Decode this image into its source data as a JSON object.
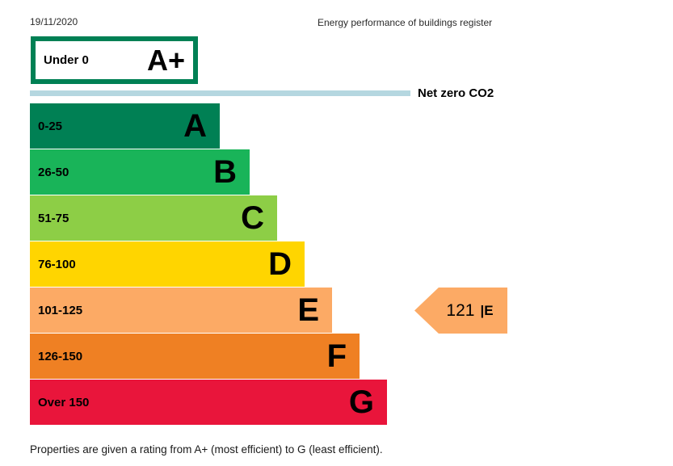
{
  "page": {
    "date": "19/11/2020",
    "header": "Energy performance of buildings register",
    "footnote": "Properties are given a rating from A+ (most efficient) to G (least efficient)."
  },
  "colors": {
    "aplus_border": "#008054",
    "net_zero_line": "#b5d7e0",
    "arrow_bg": "#fcaa65",
    "text": "#000000"
  },
  "aplus": {
    "range": "Under 0",
    "letter": "A+"
  },
  "net_zero": {
    "label": "Net zero CO2"
  },
  "bands": [
    {
      "range": "0-25",
      "letter": "A",
      "color": "#008054"
    },
    {
      "range": "26-50",
      "letter": "B",
      "color": "#19b459"
    },
    {
      "range": "51-75",
      "letter": "C",
      "color": "#8dce46"
    },
    {
      "range": "76-100",
      "letter": "D",
      "color": "#ffd500"
    },
    {
      "range": "101-125",
      "letter": "E",
      "color": "#fcaa65"
    },
    {
      "range": "126-150",
      "letter": "F",
      "color": "#ef8023"
    },
    {
      "range": "Over 150",
      "letter": "G",
      "color": "#e9153b"
    }
  ],
  "current": {
    "value": "121",
    "band": "E",
    "band_display": "|E"
  },
  "chart_data": {
    "type": "bar",
    "orientation": "horizontal",
    "title": "Energy performance of buildings register",
    "date": "19/11/2020",
    "categories": [
      "A+",
      "A",
      "B",
      "C",
      "D",
      "E",
      "F",
      "G"
    ],
    "ranges": [
      "Under 0",
      "0-25",
      "26-50",
      "51-75",
      "76-100",
      "101-125",
      "126-150",
      "Over 150"
    ],
    "colors": [
      "#008054",
      "#008054",
      "#19b459",
      "#8dce46",
      "#ffd500",
      "#fcaa65",
      "#ef8023",
      "#e9153b"
    ],
    "annotations": [
      "Net zero CO2"
    ],
    "current_rating": {
      "value": 121,
      "band": "E"
    },
    "legend_position": "none",
    "footnote": "Properties are given a rating from A+ (most efficient) to G (least efficient)."
  }
}
